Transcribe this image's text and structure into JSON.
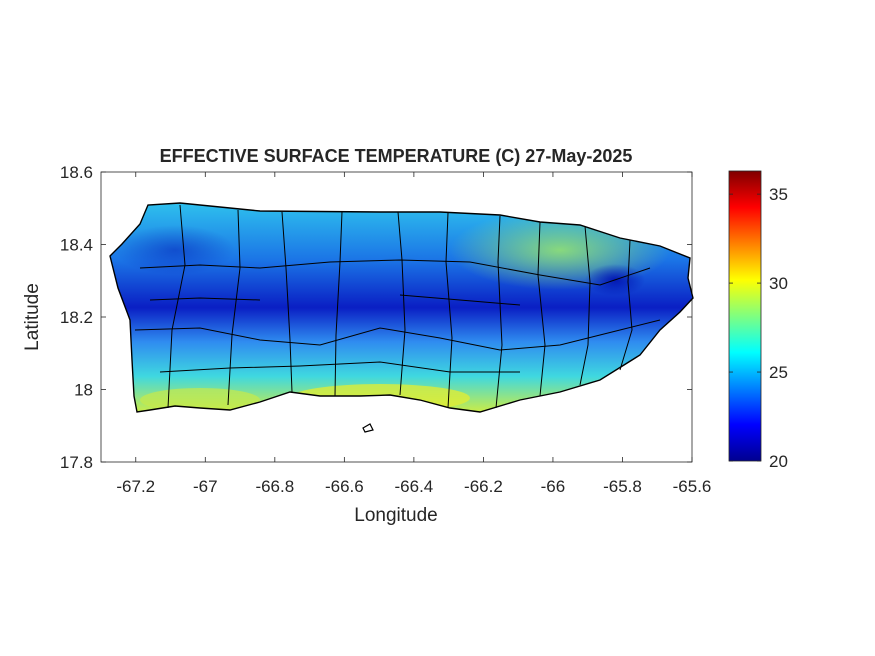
{
  "chart_data": {
    "type": "heatmap",
    "title": "EFFECTIVE SURFACE TEMPERATURE (C) 27-May-2025",
    "xlabel": "Longitude",
    "ylabel": "Latitude",
    "xlim": [
      -67.3,
      -65.6
    ],
    "ylim": [
      17.8,
      18.6
    ],
    "xticks": [
      "-67.2",
      "-67",
      "-66.8",
      "-66.6",
      "-66.4",
      "-66.2",
      "-66",
      "-65.8",
      "-65.6"
    ],
    "yticks": [
      "17.8",
      "18",
      "18.2",
      "18.4",
      "18.6"
    ],
    "grid": false,
    "colormap": "jet",
    "colorbar": {
      "range": [
        20,
        36.3
      ],
      "ticks": [
        "20",
        "25",
        "30",
        "35"
      ]
    },
    "colors": {
      "axis": "#262626",
      "boundaries": "#000000",
      "cool_min": "#00008f",
      "warm_max": "#800000"
    }
  }
}
